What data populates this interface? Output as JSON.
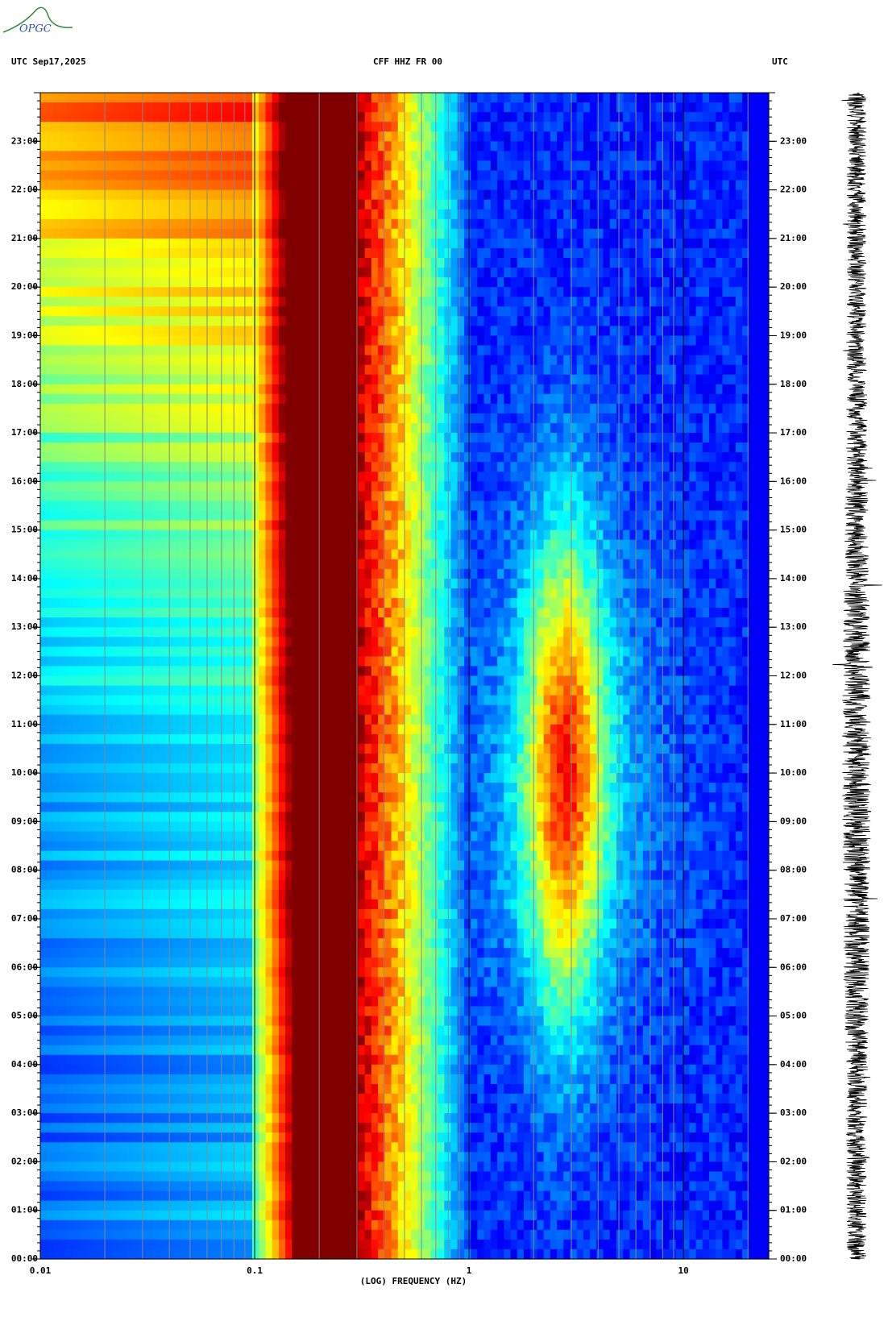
{
  "chart_data": {
    "type": "spectrogram",
    "logo": "OPGC",
    "title_left": "UTC  Sep17,2025",
    "title": "CFF HHZ FR 00",
    "title_right": "UTC",
    "xlabel": "(LOG) FREQUENCY (HZ)",
    "xscale": "log",
    "xlim": [
      0.01,
      25
    ],
    "xticks": [
      0.01,
      0.1,
      1,
      10
    ],
    "ylim": [
      0,
      24
    ],
    "yticks": [
      {
        "value": 0,
        "label": "00:00"
      },
      {
        "value": 1,
        "label": "01:00"
      },
      {
        "value": 2,
        "label": "02:00"
      },
      {
        "value": 3,
        "label": "03:00"
      },
      {
        "value": 4,
        "label": "04:00"
      },
      {
        "value": 5,
        "label": "05:00"
      },
      {
        "value": 6,
        "label": "06:00"
      },
      {
        "value": 7,
        "label": "07:00"
      },
      {
        "value": 8,
        "label": "08:00"
      },
      {
        "value": 9,
        "label": "09:00"
      },
      {
        "value": 10,
        "label": "10:00"
      },
      {
        "value": 11,
        "label": "11:00"
      },
      {
        "value": 12,
        "label": "12:00"
      },
      {
        "value": 13,
        "label": "13:00"
      },
      {
        "value": 14,
        "label": "14:00"
      },
      {
        "value": 15,
        "label": "15:00"
      },
      {
        "value": 16,
        "label": "16:00"
      },
      {
        "value": 17,
        "label": "17:00"
      },
      {
        "value": 18,
        "label": "18:00"
      },
      {
        "value": 19,
        "label": "19:00"
      },
      {
        "value": 20,
        "label": "20:00"
      },
      {
        "value": 21,
        "label": "21:00"
      },
      {
        "value": 22,
        "label": "22:00"
      },
      {
        "value": 23,
        "label": "23:00"
      }
    ]
  }
}
